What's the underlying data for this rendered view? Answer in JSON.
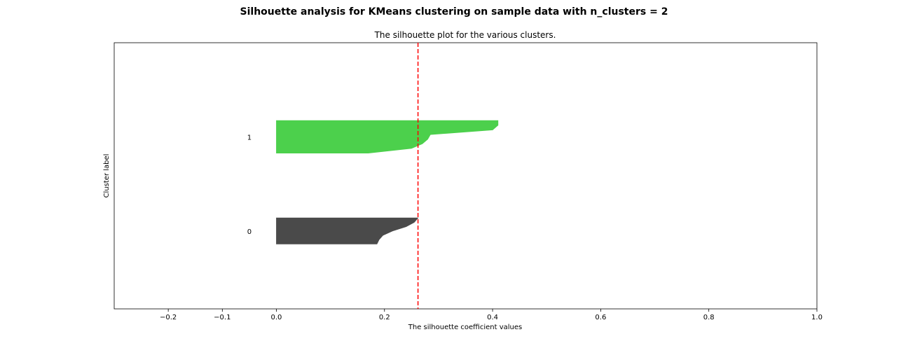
{
  "suptitle": "Silhouette analysis for KMeans clustering on sample data with n_clusters = 2",
  "chart_data": {
    "type": "area",
    "title": "The silhouette plot for the various clusters.",
    "xlabel": "The silhouette coefficient values",
    "ylabel": "Cluster label",
    "xlim": [
      -0.3,
      1.0
    ],
    "ylim": [
      0,
      41
    ],
    "xticks": [
      "−0.2",
      "−0.1",
      "0.0",
      "0.2",
      "0.4",
      "0.6",
      "0.8",
      "1.0"
    ],
    "xtick_values": [
      -0.2,
      -0.1,
      0.0,
      0.2,
      0.4,
      0.6,
      0.8,
      1.0
    ],
    "average_silhouette_score": 0.262,
    "grid": false,
    "series": [
      {
        "label": "0",
        "color": "#4a4a4a",
        "y_range": [
          10,
          14
        ],
        "silhouette_values": [
          0.186,
          0.19,
          0.197,
          0.215,
          0.24,
          0.255,
          0.262
        ]
      },
      {
        "label": "1",
        "color": "#4cd04c",
        "y_range": [
          24,
          29
        ],
        "silhouette_values": [
          0.17,
          0.25,
          0.27,
          0.28,
          0.285,
          0.4,
          0.41,
          0.41
        ]
      }
    ]
  }
}
